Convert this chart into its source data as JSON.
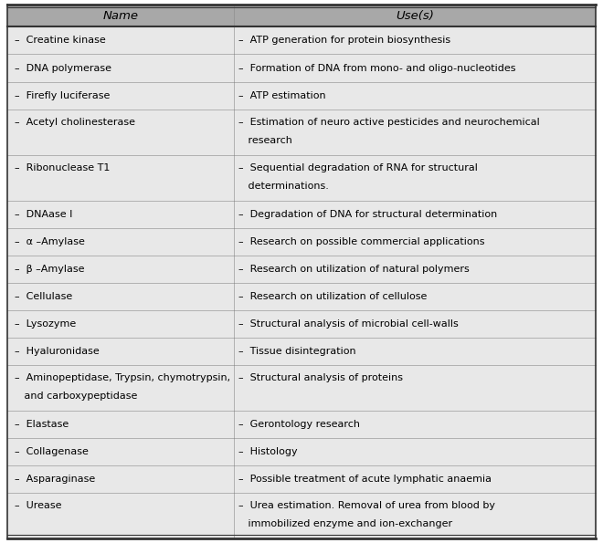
{
  "header": [
    "Name",
    "Use(s)"
  ],
  "col_split": 0.385,
  "header_bg": "#a8a8a8",
  "body_bg": "#e8e8e8",
  "border_color": "#333333",
  "header_fontsize": 9.5,
  "body_fontsize": 8.0,
  "rows": [
    {
      "name_parts": [
        {
          "text": "–  Creatine kinase",
          "style": "normal"
        }
      ],
      "use_parts": [
        {
          "text": "–  ATP generation for protein biosynthesis",
          "style": "normal"
        }
      ],
      "name_lines": 1,
      "use_lines": 1
    },
    {
      "name_parts": [
        {
          "text": "–  DNA polymerase",
          "style": "normal"
        }
      ],
      "use_parts": [
        {
          "text": "–  Formation of DNA from mono- and oligo-nucleotides",
          "style": "normal"
        }
      ],
      "name_lines": 1,
      "use_lines": 1
    },
    {
      "name_parts": [
        {
          "text": "–  Firefly luciferase",
          "style": "normal"
        }
      ],
      "use_parts": [
        {
          "text": "–  ATP estimation",
          "style": "normal"
        }
      ],
      "name_lines": 1,
      "use_lines": 1
    },
    {
      "name_parts": [
        {
          "text": "–  Acetyl cholinesterase",
          "style": "normal"
        }
      ],
      "use_parts": [
        {
          "text": "–  Estimation of neuro active pesticides and neurochemical",
          "style": "normal"
        },
        {
          "text": "   research",
          "style": "normal"
        }
      ],
      "name_lines": 1,
      "use_lines": 2
    },
    {
      "name_parts": [
        {
          "text": "–  Ribonuclease T1",
          "style": "normal"
        }
      ],
      "use_parts": [
        {
          "text": "–  Sequential degradation of RNA for structural",
          "style": "normal"
        },
        {
          "text": "   determinations.",
          "style": "normal"
        }
      ],
      "name_lines": 1,
      "use_lines": 2
    },
    {
      "name_parts": [
        {
          "text": "–  DNAase I",
          "style": "normal"
        }
      ],
      "use_parts": [
        {
          "text": "–  Degradation of DNA for structural determination",
          "style": "normal"
        }
      ],
      "name_lines": 1,
      "use_lines": 1
    },
    {
      "name_parts": [
        {
          "text": "–  α –Amylase",
          "style": "normal"
        }
      ],
      "use_parts": [
        {
          "text": "–  Research on possible commercial applications",
          "style": "normal"
        }
      ],
      "name_lines": 1,
      "use_lines": 1
    },
    {
      "name_parts": [
        {
          "text": "–  β –Amylase",
          "style": "normal"
        }
      ],
      "use_parts": [
        {
          "text": "–  Research on utilization of natural polymers",
          "style": "normal"
        }
      ],
      "name_lines": 1,
      "use_lines": 1
    },
    {
      "name_parts": [
        {
          "text": "–  Cellulase",
          "style": "normal"
        }
      ],
      "use_parts": [
        {
          "text": "–  Research on utilization of cellulose",
          "style": "normal"
        }
      ],
      "name_lines": 1,
      "use_lines": 1
    },
    {
      "name_parts": [
        {
          "text": "–  Lysozyme",
          "style": "normal"
        }
      ],
      "use_parts": [
        {
          "text": "–  Structural analysis of microbial cell-walls",
          "style": "normal"
        }
      ],
      "name_lines": 1,
      "use_lines": 1
    },
    {
      "name_parts": [
        {
          "text": "–  Hyaluronidase",
          "style": "normal"
        }
      ],
      "use_parts": [
        {
          "text": "–  Tissue disintegration",
          "style": "normal"
        }
      ],
      "name_lines": 1,
      "use_lines": 1
    },
    {
      "name_parts": [
        {
          "text": "–  Aminopeptidase, Trypsin, chymotrypsin,",
          "style": "normal"
        },
        {
          "text": "   and carboxypeptidase",
          "style": "normal"
        }
      ],
      "use_parts": [
        {
          "text": "–  Structural analysis of proteins",
          "style": "normal"
        }
      ],
      "name_lines": 2,
      "use_lines": 1
    },
    {
      "name_parts": [
        {
          "text": "–  Elastase",
          "style": "normal"
        }
      ],
      "use_parts": [
        {
          "text": "–  Gerontology research",
          "style": "normal"
        }
      ],
      "name_lines": 1,
      "use_lines": 1
    },
    {
      "name_parts": [
        {
          "text": "–  Collagenase",
          "style": "normal"
        }
      ],
      "use_parts": [
        {
          "text": "–  Histology",
          "style": "normal"
        }
      ],
      "name_lines": 1,
      "use_lines": 1
    },
    {
      "name_parts": [
        {
          "text": "–  Asparaginase",
          "style": "normal"
        }
      ],
      "use_parts": [
        {
          "text": "–  Possible treatment of acute lymphatic anaemia",
          "style": "normal"
        }
      ],
      "name_lines": 1,
      "use_lines": 1
    },
    {
      "name_parts": [
        {
          "text": "–  Urease",
          "style": "normal"
        }
      ],
      "use_parts": [
        {
          "text": "–  Urea estimation. Removal of urea from blood by",
          "style": "normal"
        },
        {
          "text": "   immobilized enzyme and ion-exchanger",
          "style": "normal"
        }
      ],
      "name_lines": 1,
      "use_lines": 2
    }
  ]
}
